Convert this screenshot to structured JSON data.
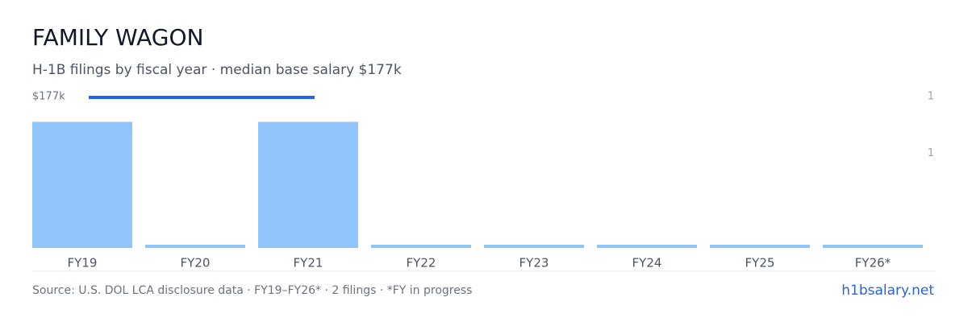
{
  "chart_data": {
    "type": "bar",
    "title": "FAMILY WAGON",
    "subtitle": "H-1B filings by fiscal year · median base salary $177k",
    "salary_label": "$177k",
    "categories": [
      "FY19",
      "FY20",
      "FY21",
      "FY22",
      "FY23",
      "FY24",
      "FY25",
      "FY26*"
    ],
    "values": [
      1,
      0,
      1,
      0,
      0,
      0,
      0,
      0
    ],
    "color": "#93c5fd",
    "ylim": [
      0,
      1.2
    ],
    "yticks": [
      {
        "value": 1.2,
        "label": "1"
      },
      {
        "value": 0.75,
        "label": "1"
      }
    ],
    "footer": "Source: U.S. DOL LCA disclosure data · FY19–FY26* · 2 filings · *FY in progress",
    "brand": "h1bsalary.net"
  }
}
